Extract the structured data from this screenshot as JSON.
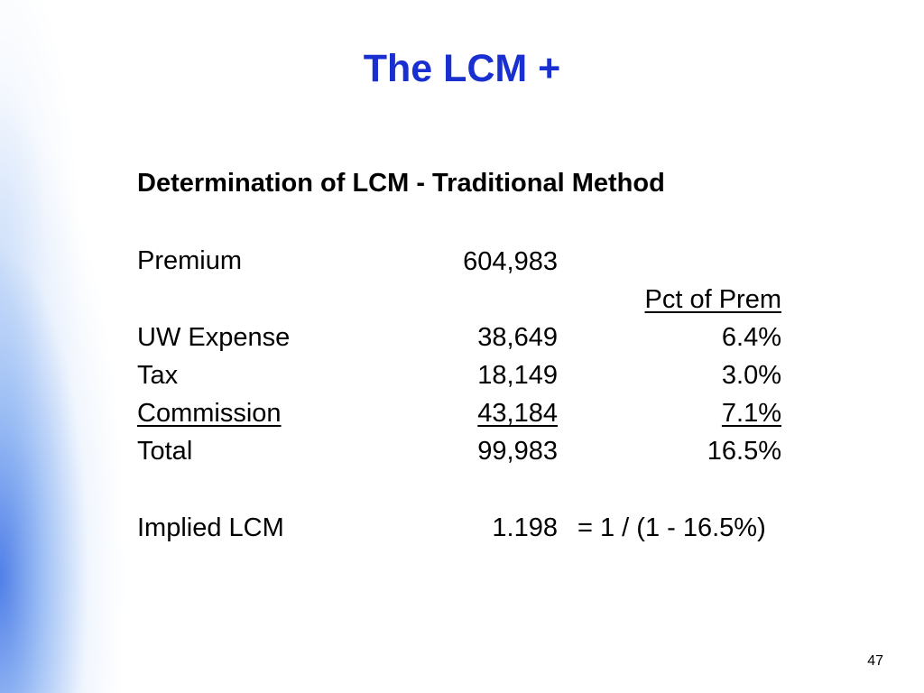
{
  "slide": {
    "title": "The LCM +",
    "subtitle": "Determination of LCM - Traditional Method",
    "premium": {
      "label": "Premium",
      "value": "604,983"
    },
    "pct_header": "Pct of Prem",
    "rows": [
      {
        "label": "UW Expense",
        "value": "38,649",
        "pct": "6.4%"
      },
      {
        "label": "Tax",
        "value": "18,149",
        "pct": "3.0%"
      },
      {
        "label": "Commission",
        "value": "43,184",
        "pct": "7.1%"
      },
      {
        "label": "Total",
        "value": "99,983",
        "pct": "16.5%"
      }
    ],
    "implied": {
      "label": "Implied LCM",
      "value": "1.198",
      "formula": "= 1 / (1 - 16.5%)"
    },
    "page_number": "47"
  },
  "colors": {
    "title": "#1a2fd0",
    "side_band": "#4678e6"
  }
}
